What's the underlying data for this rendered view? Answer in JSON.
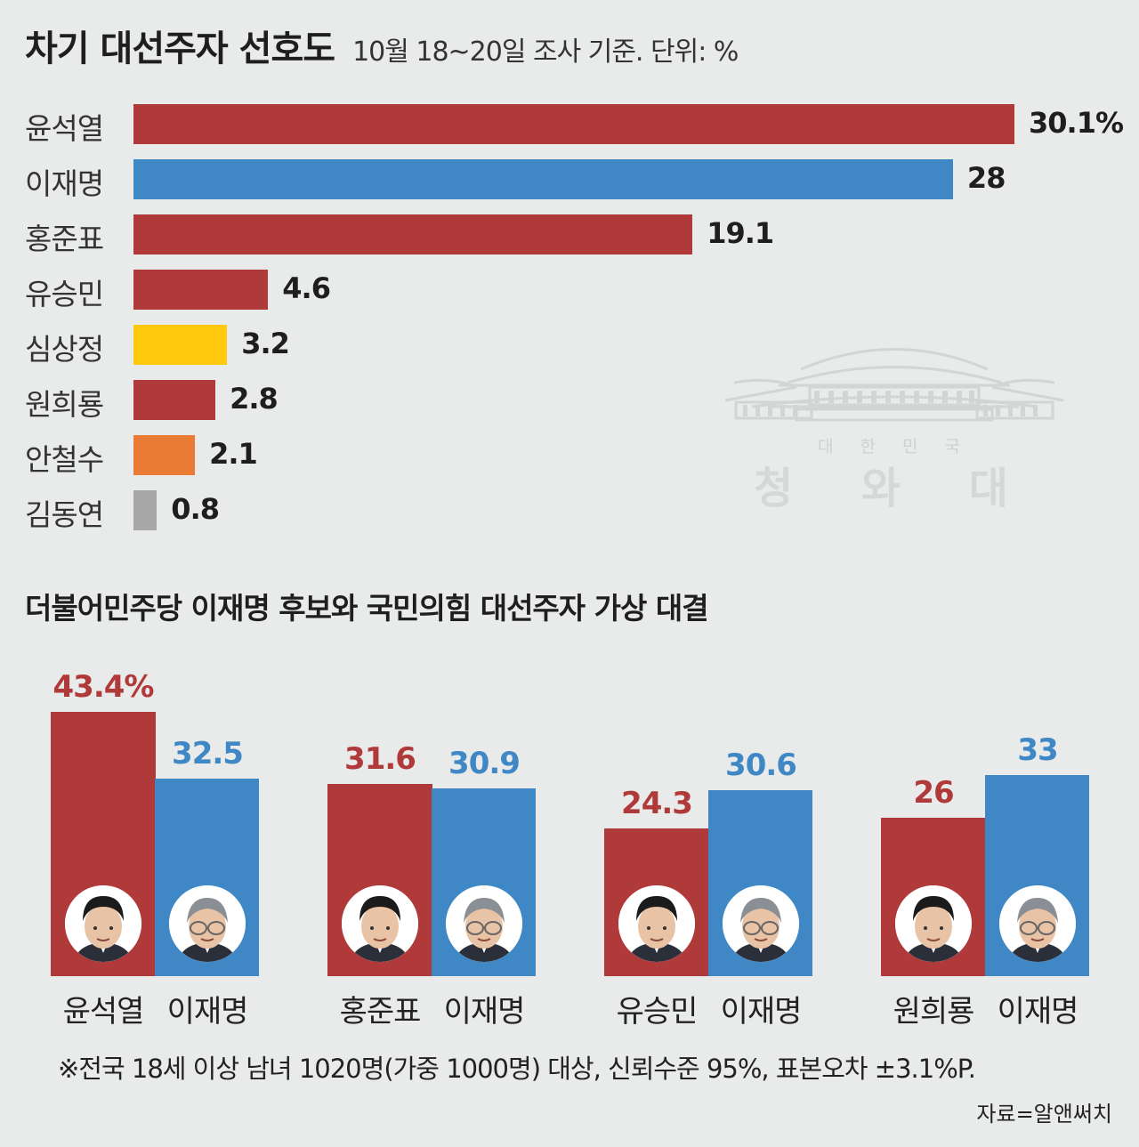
{
  "header": {
    "title": "차기 대선주자 선호도",
    "subtitle": "10월 18~20일 조사 기준. 단위: %"
  },
  "colors": {
    "red": "#b0393a",
    "blue": "#3f88c5",
    "yellow": "#ffc90e",
    "orange": "#ea7b34",
    "gray": "#a7a7a7",
    "background": "#e9ebea"
  },
  "chart_data": [
    {
      "type": "bar",
      "orientation": "horizontal",
      "title": "차기 대선주자 선호도",
      "subtitle": "10월 18~20일 조사 기준. 단위: %",
      "categories": [
        "윤석열",
        "이재명",
        "홍준표",
        "유승민",
        "심상정",
        "원희룡",
        "안철수",
        "김동연"
      ],
      "values": [
        30.1,
        28,
        19.1,
        4.6,
        3.2,
        2.8,
        2.1,
        0.8
      ],
      "value_labels": [
        "30.1%",
        "28",
        "19.1",
        "4.6",
        "3.2",
        "2.8",
        "2.1",
        "0.8"
      ],
      "bar_colors": [
        "#b0393a",
        "#3f88c5",
        "#b0393a",
        "#b0393a",
        "#ffc90e",
        "#b0393a",
        "#ea7b34",
        "#a7a7a7"
      ],
      "xlim": [
        0,
        30.1
      ]
    },
    {
      "type": "bar",
      "title": "더불어민주당 이재명 후보와 국민의힘 대선주자 가상 대결",
      "groups": [
        {
          "opponent": "윤석열",
          "opponent_value": 43.4,
          "opponent_label": "43.4%",
          "lee": "이재명",
          "lee_value": 32.5,
          "lee_label": "32.5"
        },
        {
          "opponent": "홍준표",
          "opponent_value": 31.6,
          "opponent_label": "31.6",
          "lee": "이재명",
          "lee_value": 30.9,
          "lee_label": "30.9"
        },
        {
          "opponent": "유승민",
          "opponent_value": 24.3,
          "opponent_label": "24.3",
          "lee": "이재명",
          "lee_value": 30.6,
          "lee_label": "30.6"
        },
        {
          "opponent": "원희룡",
          "opponent_value": 26,
          "opponent_label": "26",
          "lee": "이재명",
          "lee_value": 33,
          "lee_label": "33"
        }
      ],
      "ylim": [
        0,
        43.4
      ]
    }
  ],
  "watermark": {
    "small": "대 한 민 국",
    "large": "청 와 대",
    "icon": "blue-house-roof-icon"
  },
  "footnote": "※전국 18세 이상 남녀 1020명(가중 1000명) 대상, 신뢰수준 95%, 표본오차 ±3.1%P.",
  "source": "자료=알앤써치"
}
